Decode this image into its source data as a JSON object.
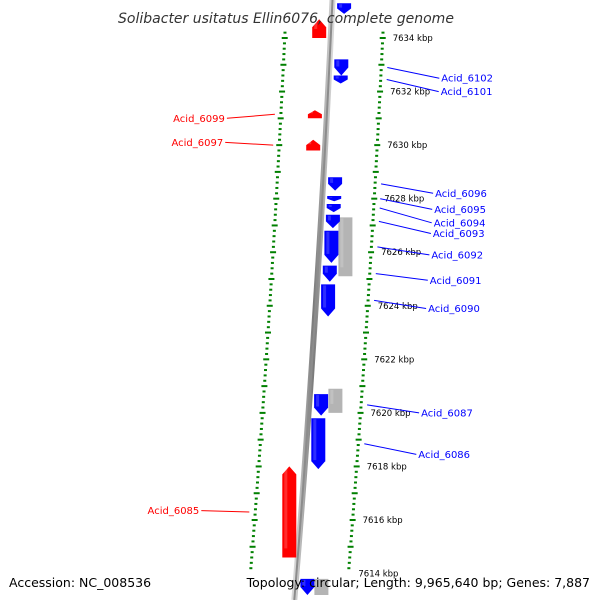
{
  "title": "Solibacter usitatus Ellin6076, complete genome",
  "footer": {
    "accession": "Accession: NC_008536",
    "topology": "Topology: circular; Length: 9,965,640 bp; Genes: 7,887"
  },
  "colors": {
    "forward": "#ff0000",
    "reverse": "#0000ff",
    "other": "#b4b4b4",
    "tick": "#008000",
    "backbone": "#8c8c8c"
  },
  "scale": {
    "unit": "kbp",
    "tick_step_kbp": 0.2,
    "label_step_kbp": 2
  },
  "tick_labels": [
    {
      "text": "7634 kbp",
      "kbp": 7634
    },
    {
      "text": "7632 kbp",
      "kbp": 7632
    },
    {
      "text": "7630 kbp",
      "kbp": 7630
    },
    {
      "text": "7628 kbp",
      "kbp": 7628
    },
    {
      "text": "7626 kbp",
      "kbp": 7626
    },
    {
      "text": "7624 kbp",
      "kbp": 7624
    },
    {
      "text": "7622 kbp",
      "kbp": 7622
    },
    {
      "text": "7620 kbp",
      "kbp": 7620
    },
    {
      "text": "7618 kbp",
      "kbp": 7618
    },
    {
      "text": "7616 kbp",
      "kbp": 7616
    },
    {
      "text": "7614 kbp",
      "kbp": 7614
    }
  ],
  "genes": [
    {
      "label": "Acid_6102",
      "strand": "reverse",
      "start_kbp": 7632.6,
      "end_kbp": 7633.2,
      "side": "right",
      "ring": 0,
      "label_kbp": 7632.5
    },
    {
      "label": "Acid_6101",
      "strand": "reverse",
      "start_kbp": 7632.3,
      "end_kbp": 7632.6,
      "side": "right",
      "ring": 0,
      "label_kbp": 7632.0
    },
    {
      "label": "Acid_6099",
      "strand": "forward",
      "start_kbp": 7631.0,
      "end_kbp": 7631.3,
      "side": "left",
      "ring": 0,
      "label_kbp": 7631.0
    },
    {
      "label": "Acid_6097",
      "strand": "forward",
      "start_kbp": 7629.8,
      "end_kbp": 7630.2,
      "side": "left",
      "ring": 0,
      "label_kbp": 7630.1
    },
    {
      "label": "Acid_6096",
      "strand": "reverse",
      "start_kbp": 7628.3,
      "end_kbp": 7628.8,
      "side": "right",
      "ring": 0,
      "label_kbp": 7628.2
    },
    {
      "label": "Acid_6095",
      "strand": "reverse",
      "start_kbp": 7627.9,
      "end_kbp": 7628.1,
      "side": "right",
      "ring": 0,
      "label_kbp": 7627.6
    },
    {
      "label": "Acid_6094",
      "strand": "reverse",
      "start_kbp": 7627.5,
      "end_kbp": 7627.8,
      "side": "right",
      "ring": 0,
      "label_kbp": 7627.1
    },
    {
      "label": "Acid_6093",
      "strand": "reverse",
      "start_kbp": 7626.9,
      "end_kbp": 7627.4,
      "side": "right",
      "ring": 0,
      "label_kbp": 7626.7
    },
    {
      "label": "Acid_6092",
      "strand": "reverse",
      "start_kbp": 7625.6,
      "end_kbp": 7626.8,
      "side": "right",
      "ring": 0,
      "label_kbp": 7625.9
    },
    {
      "label": "Acid_6091",
      "strand": "reverse",
      "start_kbp": 7624.9,
      "end_kbp": 7625.5,
      "side": "right",
      "ring": 0,
      "label_kbp": 7624.95
    },
    {
      "label": "Acid_6090",
      "strand": "reverse",
      "start_kbp": 7623.6,
      "end_kbp": 7624.8,
      "side": "right",
      "ring": 0,
      "label_kbp": 7623.9
    },
    {
      "label": "Acid_6087",
      "strand": "reverse",
      "start_kbp": 7619.9,
      "end_kbp": 7620.7,
      "side": "right",
      "ring": 0,
      "label_kbp": 7620.0
    },
    {
      "label": "Acid_6086",
      "strand": "reverse",
      "start_kbp": 7617.9,
      "end_kbp": 7619.8,
      "side": "right",
      "ring": 0,
      "label_kbp": 7618.45
    },
    {
      "label": "Acid_6085",
      "strand": "forward",
      "start_kbp": 7614.6,
      "end_kbp": 7618.0,
      "side": "left",
      "ring": 0,
      "label_kbp": 7616.35
    }
  ],
  "unlabeled_features": [
    {
      "strand": "forward",
      "start_kbp": 7634.0,
      "end_kbp": 7634.7
    },
    {
      "strand": "reverse",
      "start_kbp": 7634.9,
      "end_kbp": 7635.3
    },
    {
      "strand": "other",
      "start_kbp": 7625.1,
      "end_kbp": 7627.3
    },
    {
      "strand": "other",
      "start_kbp": 7620.0,
      "end_kbp": 7620.9
    },
    {
      "strand": "reverse",
      "start_kbp": 7613.2,
      "end_kbp": 7613.8
    },
    {
      "strand": "other",
      "start_kbp": 7613.2,
      "end_kbp": 7613.8
    }
  ]
}
